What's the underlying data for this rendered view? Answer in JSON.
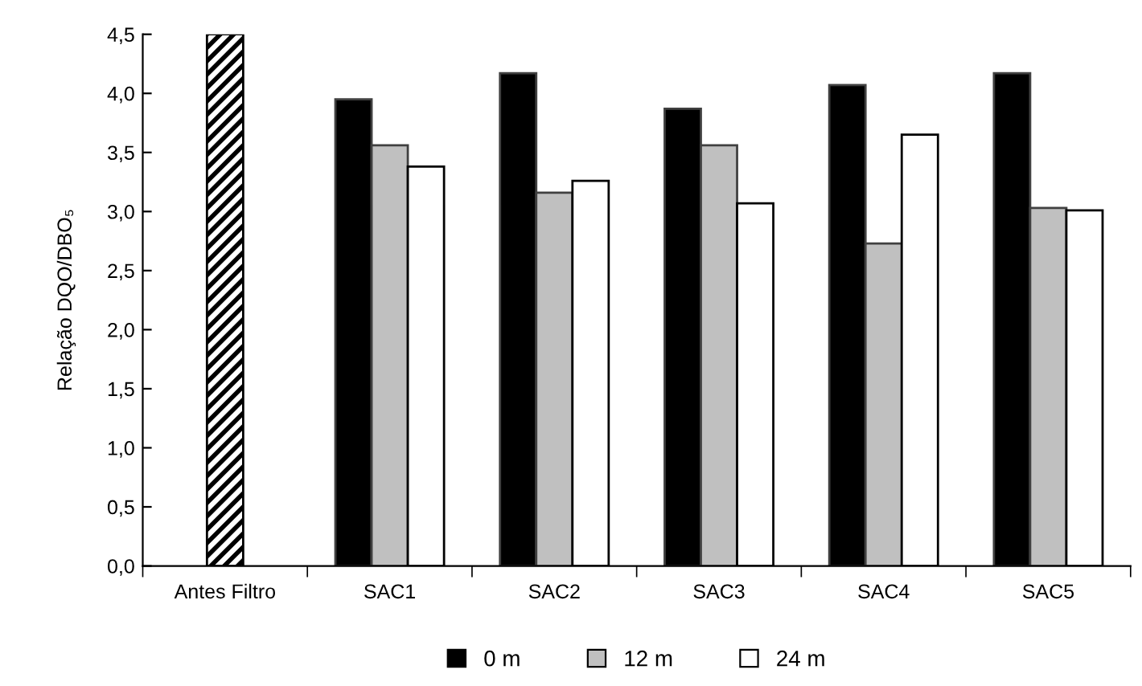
{
  "chart_data": {
    "type": "bar",
    "ylabel": "Relação DQO/DBO₅",
    "categories": [
      "Antes Filtro",
      "SAC1",
      "SAC2",
      "SAC3",
      "SAC4",
      "SAC5"
    ],
    "series": [
      {
        "values": [
          4.5,
          null,
          null,
          null,
          null,
          null
        ],
        "color": "#000000"
      },
      {
        "name": "0 m",
        "color": "#000000",
        "values": [
          null,
          3.95,
          4.17,
          3.87,
          4.07,
          4.17
        ]
      },
      {
        "name": "12 m",
        "color": "#c0c0c0",
        "values": [
          null,
          3.56,
          3.16,
          3.56,
          2.73,
          3.03
        ]
      },
      {
        "name": "24 m",
        "color": "#ffffff",
        "values": [
          null,
          3.38,
          3.26,
          3.07,
          3.65,
          3.01
        ]
      }
    ],
    "ylim": [
      0,
      4.5
    ],
    "yticks": [
      {
        "value": 0,
        "label": "0,0"
      },
      {
        "value": 0.5,
        "label": "0,5"
      },
      {
        "value": 1,
        "label": "1,0"
      },
      {
        "value": 1.5,
        "label": "1,5"
      },
      {
        "value": 2,
        "label": "2,0"
      },
      {
        "value": 2.5,
        "label": "2,5"
      },
      {
        "value": 3,
        "label": "3,0"
      },
      {
        "value": 3.5,
        "label": "3,5"
      },
      {
        "value": 4,
        "label": "4,0"
      },
      {
        "value": 4.5,
        "label": "4,5"
      }
    ],
    "legend": "bottom",
    "grid": false
  }
}
